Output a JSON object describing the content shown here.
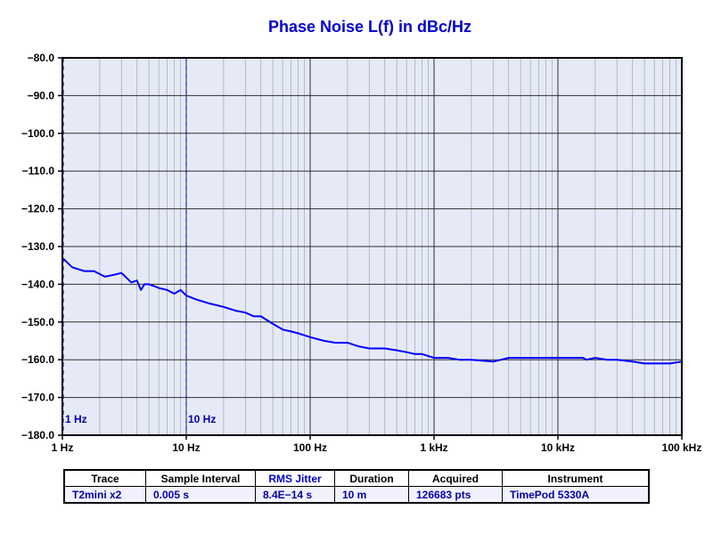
{
  "chart_data": {
    "type": "line",
    "title": "Phase Noise L(f) in dBc/Hz",
    "xlabel": "",
    "ylabel": "",
    "x_scale": "log",
    "xlim": [
      1,
      100000
    ],
    "ylim": [
      -180,
      -80
    ],
    "grid": true,
    "x_ticks": [
      {
        "value": 1,
        "label": "1 Hz"
      },
      {
        "value": 10,
        "label": "10 Hz"
      },
      {
        "value": 100,
        "label": "100 Hz"
      },
      {
        "value": 1000,
        "label": "1 kHz"
      },
      {
        "value": 10000,
        "label": "10 kHz"
      },
      {
        "value": 100000,
        "label": "100 kHz"
      }
    ],
    "y_ticks": [
      {
        "value": -80,
        "label": "−80.0"
      },
      {
        "value": -90,
        "label": "−90.0"
      },
      {
        "value": -100,
        "label": "−100.0"
      },
      {
        "value": -110,
        "label": "−110.0"
      },
      {
        "value": -120,
        "label": "−120.0"
      },
      {
        "value": -130,
        "label": "−130.0"
      },
      {
        "value": -140,
        "label": "−140.0"
      },
      {
        "value": -150,
        "label": "−150.0"
      },
      {
        "value": -160,
        "label": "−160.0"
      },
      {
        "value": -170,
        "label": "−170.0"
      },
      {
        "value": -180,
        "label": "−180.0"
      }
    ],
    "markers": [
      {
        "x": 1,
        "label": "1 Hz"
      },
      {
        "x": 10,
        "label": "10 Hz"
      }
    ],
    "series": [
      {
        "color": "#0000ff",
        "x": [
          1,
          1.2,
          1.5,
          1.8,
          2.2,
          2.6,
          3,
          3.6,
          4,
          4.3,
          4.6,
          5,
          5.5,
          6,
          7,
          8,
          9,
          10,
          12,
          15,
          20,
          25,
          30,
          35,
          40,
          50,
          60,
          70,
          80,
          100,
          130,
          160,
          200,
          250,
          300,
          400,
          500,
          600,
          700,
          800,
          1000,
          1300,
          1600,
          2000,
          3000,
          4000,
          5000,
          6000,
          8000,
          10000,
          13000,
          16000,
          17000,
          20000,
          25000,
          30000,
          40000,
          50000,
          60000,
          80000,
          100000
        ],
        "y": [
          -133,
          -135.5,
          -136.5,
          -136.5,
          -138,
          -137.5,
          -137,
          -139.5,
          -139,
          -141.5,
          -140,
          -140,
          -140.5,
          -141,
          -141.5,
          -142.5,
          -141.5,
          -143,
          -144,
          -145,
          -146,
          -147,
          -147.5,
          -148.5,
          -148.5,
          -150.5,
          -152,
          -152.5,
          -153,
          -154,
          -155,
          -155.5,
          -155.5,
          -156.5,
          -157,
          -157,
          -157.5,
          -158,
          -158.5,
          -158.5,
          -159.5,
          -159.5,
          -160,
          -160,
          -160.5,
          -159.5,
          -159.5,
          -159.5,
          -159.5,
          -159.5,
          -159.5,
          -159.5,
          -160,
          -159.5,
          -160,
          -160,
          -160.5,
          -161,
          -161,
          -161,
          -160.5
        ]
      }
    ]
  },
  "table": {
    "headers": [
      "Trace",
      "Sample Interval",
      "RMS Jitter",
      "Duration",
      "Acquired",
      "Instrument"
    ],
    "row": [
      "T2mini x2",
      "0.005 s",
      "8.4E−14 s",
      "10 m",
      "126683 pts",
      "TimePod 5330A"
    ]
  }
}
